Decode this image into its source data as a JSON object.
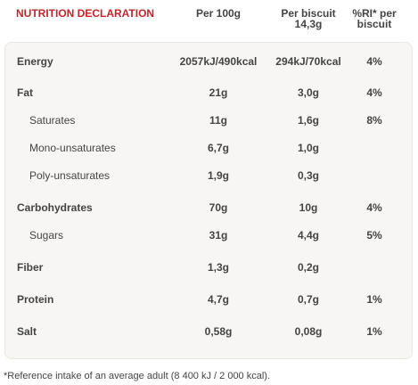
{
  "header": {
    "title": "NUTRITION DECLARATION",
    "columns": [
      [
        "Per 100g"
      ],
      [
        "Per biscuit",
        "14,3g"
      ],
      [
        "%RI* per",
        "biscuit"
      ]
    ]
  },
  "table": {
    "rows": [
      {
        "label": "Energy",
        "sub": false,
        "cells": [
          "2057kJ/490kcal",
          "294kJ/70kcal",
          "4%"
        ]
      },
      {
        "label": "Fat",
        "sub": false,
        "cells": [
          "21g",
          "3,0g",
          "4%"
        ]
      },
      {
        "label": "Saturates",
        "sub": true,
        "cells": [
          "11g",
          "1,6g",
          "8%"
        ]
      },
      {
        "label": "Mono-unsaturates",
        "sub": true,
        "cells": [
          "6,7g",
          "1,0g",
          null
        ]
      },
      {
        "label": "Poly-unsaturates",
        "sub": true,
        "cells": [
          "1,9g",
          "0,3g",
          null
        ]
      },
      {
        "label": "Carbohydrates",
        "sub": false,
        "cells": [
          "70g",
          "10g",
          "4%"
        ]
      },
      {
        "label": "Sugars",
        "sub": true,
        "cells": [
          "31g",
          "4,4g",
          "5%"
        ]
      },
      {
        "label": "Fiber",
        "sub": false,
        "cells": [
          "1,3g",
          "0,2g",
          null
        ]
      },
      {
        "label": "Protein",
        "sub": false,
        "cells": [
          "4,7g",
          "0,7g",
          "1%"
        ]
      },
      {
        "label": "Salt",
        "sub": false,
        "cells": [
          "0,58g",
          "0,08g",
          "1%"
        ]
      }
    ]
  },
  "footnote": "*Reference intake of an average adult (8 400 kJ / 2 000 kcal)."
}
